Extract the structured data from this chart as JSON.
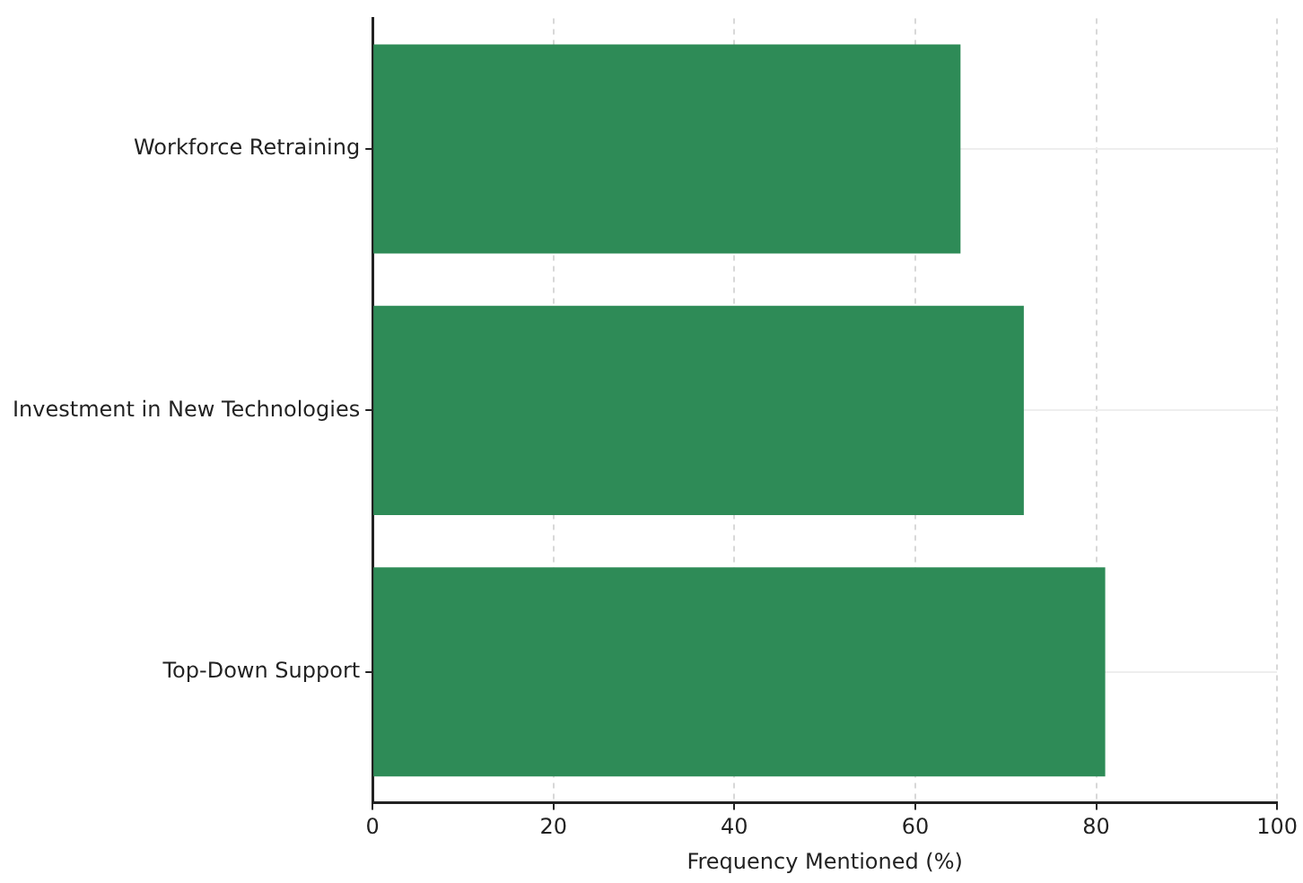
{
  "chart_data": {
    "type": "bar",
    "orientation": "horizontal",
    "xlabel": "Frequency Mentioned (%)",
    "categories": [
      "Workforce Retraining",
      "Investment in New Technologies",
      "Top-Down Support"
    ],
    "values": [
      65,
      72,
      81
    ],
    "color": "#2e8b57",
    "xlim": [
      0,
      100
    ],
    "xticks": [
      0,
      20,
      40,
      60,
      80,
      100
    ],
    "grid": true
  }
}
